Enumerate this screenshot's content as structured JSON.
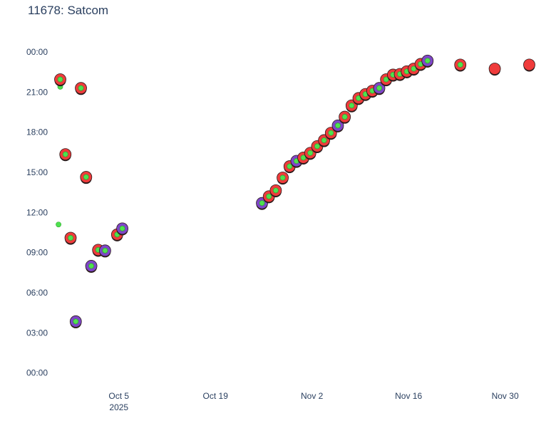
{
  "chart_data": {
    "type": "scatter",
    "title": "11678: Satcom",
    "xlabel": "",
    "ylabel": "",
    "x_ticks": [
      {
        "date": "2025-10-05",
        "label": "Oct 5",
        "sublabel": "2025"
      },
      {
        "date": "2025-10-19",
        "label": "Oct 19",
        "sublabel": ""
      },
      {
        "date": "2025-11-02",
        "label": "Nov 2",
        "sublabel": ""
      },
      {
        "date": "2025-11-16",
        "label": "Nov 16",
        "sublabel": ""
      },
      {
        "date": "2025-11-30",
        "label": "Nov 30",
        "sublabel": ""
      }
    ],
    "y_ticks": [
      {
        "hours": 24,
        "label": "00:00"
      },
      {
        "hours": 21,
        "label": "21:00"
      },
      {
        "hours": 18,
        "label": "18:00"
      },
      {
        "hours": 15,
        "label": "15:00"
      },
      {
        "hours": 12,
        "label": "12:00"
      },
      {
        "hours": 9,
        "label": "09:00"
      },
      {
        "hours": 6,
        "label": "06:00"
      },
      {
        "hours": 3,
        "label": "03:00"
      },
      {
        "hours": 0,
        "label": "00:00"
      }
    ],
    "xlim": [
      "2025-09-25",
      "2025-12-05"
    ],
    "ylim": [
      -0.5,
      24.8
    ],
    "grid": false,
    "colors": {
      "red": "#ef3b3b",
      "purple": "#7e46c8",
      "green": "#4ee14e",
      "outline": "#2b1b1b"
    },
    "series": [
      {
        "values": [
          [
            "2025-09-26 06:00",
            11.1
          ],
          [
            "2025-09-26 12:00",
            21.4
          ]
        ],
        "kind": "green-only"
      },
      {
        "values": [
          [
            "2025-09-26 12:00",
            21.95,
            "red"
          ],
          [
            "2025-09-27 06:00",
            16.35,
            "red"
          ],
          [
            "2025-09-28 00:00",
            10.1,
            "red"
          ],
          [
            "2025-09-28 18:00",
            3.85,
            "purple"
          ],
          [
            "2025-09-29 12:00",
            21.3,
            "red"
          ],
          [
            "2025-09-30 06:00",
            14.65,
            "red"
          ],
          [
            "2025-10-01 00:00",
            8.0,
            "purple"
          ],
          [
            "2025-10-02 00:00",
            9.2,
            "red"
          ],
          [
            "2025-10-03 00:00",
            9.15,
            "purple"
          ],
          [
            "2025-10-04 18:00",
            10.35,
            "red"
          ],
          [
            "2025-10-05 12:00",
            10.8,
            "purple"
          ],
          [
            "2025-10-25 18:00",
            12.7,
            "purple"
          ],
          [
            "2025-10-26 18:00",
            13.2,
            "red"
          ],
          [
            "2025-10-27 18:00",
            13.65,
            "red"
          ],
          [
            "2025-10-28 18:00",
            14.6,
            "red"
          ],
          [
            "2025-10-29 18:00",
            15.45,
            "red"
          ],
          [
            "2025-10-30 18:00",
            15.85,
            "purple"
          ],
          [
            "2025-10-31 18:00",
            16.1,
            "red"
          ],
          [
            "2025-11-01 18:00",
            16.45,
            "red"
          ],
          [
            "2025-11-02 18:00",
            16.95,
            "red"
          ],
          [
            "2025-11-03 18:00",
            17.4,
            "red"
          ],
          [
            "2025-11-04 18:00",
            17.95,
            "red"
          ],
          [
            "2025-11-05 18:00",
            18.5,
            "purple"
          ],
          [
            "2025-11-06 18:00",
            19.15,
            "red"
          ],
          [
            "2025-11-07 18:00",
            20.0,
            "red"
          ],
          [
            "2025-11-08 18:00",
            20.55,
            "red"
          ],
          [
            "2025-11-09 18:00",
            20.85,
            "red"
          ],
          [
            "2025-11-10 18:00",
            21.1,
            "red"
          ],
          [
            "2025-11-11 18:00",
            21.3,
            "purple"
          ],
          [
            "2025-11-12 18:00",
            21.95,
            "red"
          ],
          [
            "2025-11-13 18:00",
            22.3,
            "red"
          ],
          [
            "2025-11-14 18:00",
            22.35,
            "red"
          ],
          [
            "2025-11-15 18:00",
            22.55,
            "red"
          ],
          [
            "2025-11-16 18:00",
            22.75,
            "red"
          ],
          [
            "2025-11-17 18:00",
            23.1,
            "red"
          ],
          [
            "2025-11-18 18:00",
            23.35,
            "purple"
          ],
          [
            "2025-11-23 12:00",
            23.05,
            "red"
          ],
          [
            "2025-11-28 12:00",
            22.75,
            "red",
            "no-dot"
          ],
          [
            "2025-12-03 12:00",
            23.05,
            "red",
            "no-dot"
          ]
        ],
        "kind": "markers"
      }
    ]
  }
}
